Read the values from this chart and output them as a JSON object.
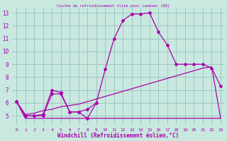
{
  "x_values": [
    0,
    1,
    2,
    3,
    4,
    5,
    6,
    7,
    8,
    9,
    10,
    11,
    12,
    13,
    14,
    15,
    16,
    17,
    18,
    19,
    20,
    21,
    22,
    23
  ],
  "line1_y": [
    6.1,
    5.0,
    5.0,
    5.0,
    6.7,
    6.7,
    5.3,
    5.3,
    4.8,
    6.0,
    8.6,
    11.0,
    12.4,
    12.9,
    12.9,
    13.0,
    11.5,
    10.5,
    9.0,
    9.0,
    9.0,
    9.0,
    8.7,
    7.3
  ],
  "line2_y": [
    6.1,
    5.0,
    5.0,
    5.1,
    7.0,
    6.8,
    5.3,
    5.3,
    5.5,
    6.0,
    null,
    null,
    null,
    null,
    null,
    null,
    null,
    null,
    null,
    null,
    null,
    null,
    null,
    null
  ],
  "line3_y": [
    6.1,
    4.8,
    4.8,
    4.8,
    4.8,
    4.8,
    4.8,
    4.8,
    4.8,
    4.8,
    4.8,
    4.8,
    4.8,
    4.8,
    4.8,
    4.8,
    4.8,
    4.8,
    4.8,
    4.8,
    4.8,
    4.8,
    4.8,
    4.8
  ],
  "line4_y": [
    6.1,
    5.1,
    5.2,
    5.4,
    5.5,
    5.7,
    5.8,
    5.9,
    6.1,
    6.3,
    6.5,
    6.7,
    6.9,
    7.1,
    7.3,
    7.5,
    7.7,
    7.9,
    8.1,
    8.3,
    8.5,
    8.7,
    8.8,
    4.8
  ],
  "bg_color": "#c8e8e0",
  "grid_color": "#a0c8c0",
  "line_color": "#aa00aa",
  "xlabel": "Windchill (Refroidissement éolien,°C)",
  "title": "Courbe du refroidissement olien pour Landser (68)",
  "ylim": [
    4.3,
    13.4
  ],
  "xlim": [
    -0.5,
    23.5
  ],
  "yticks": [
    5,
    6,
    7,
    8,
    9,
    10,
    11,
    12,
    13
  ],
  "xticks": [
    0,
    1,
    2,
    3,
    4,
    5,
    6,
    7,
    8,
    9,
    10,
    11,
    12,
    13,
    14,
    15,
    16,
    17,
    18,
    19,
    20,
    21,
    22,
    23
  ]
}
